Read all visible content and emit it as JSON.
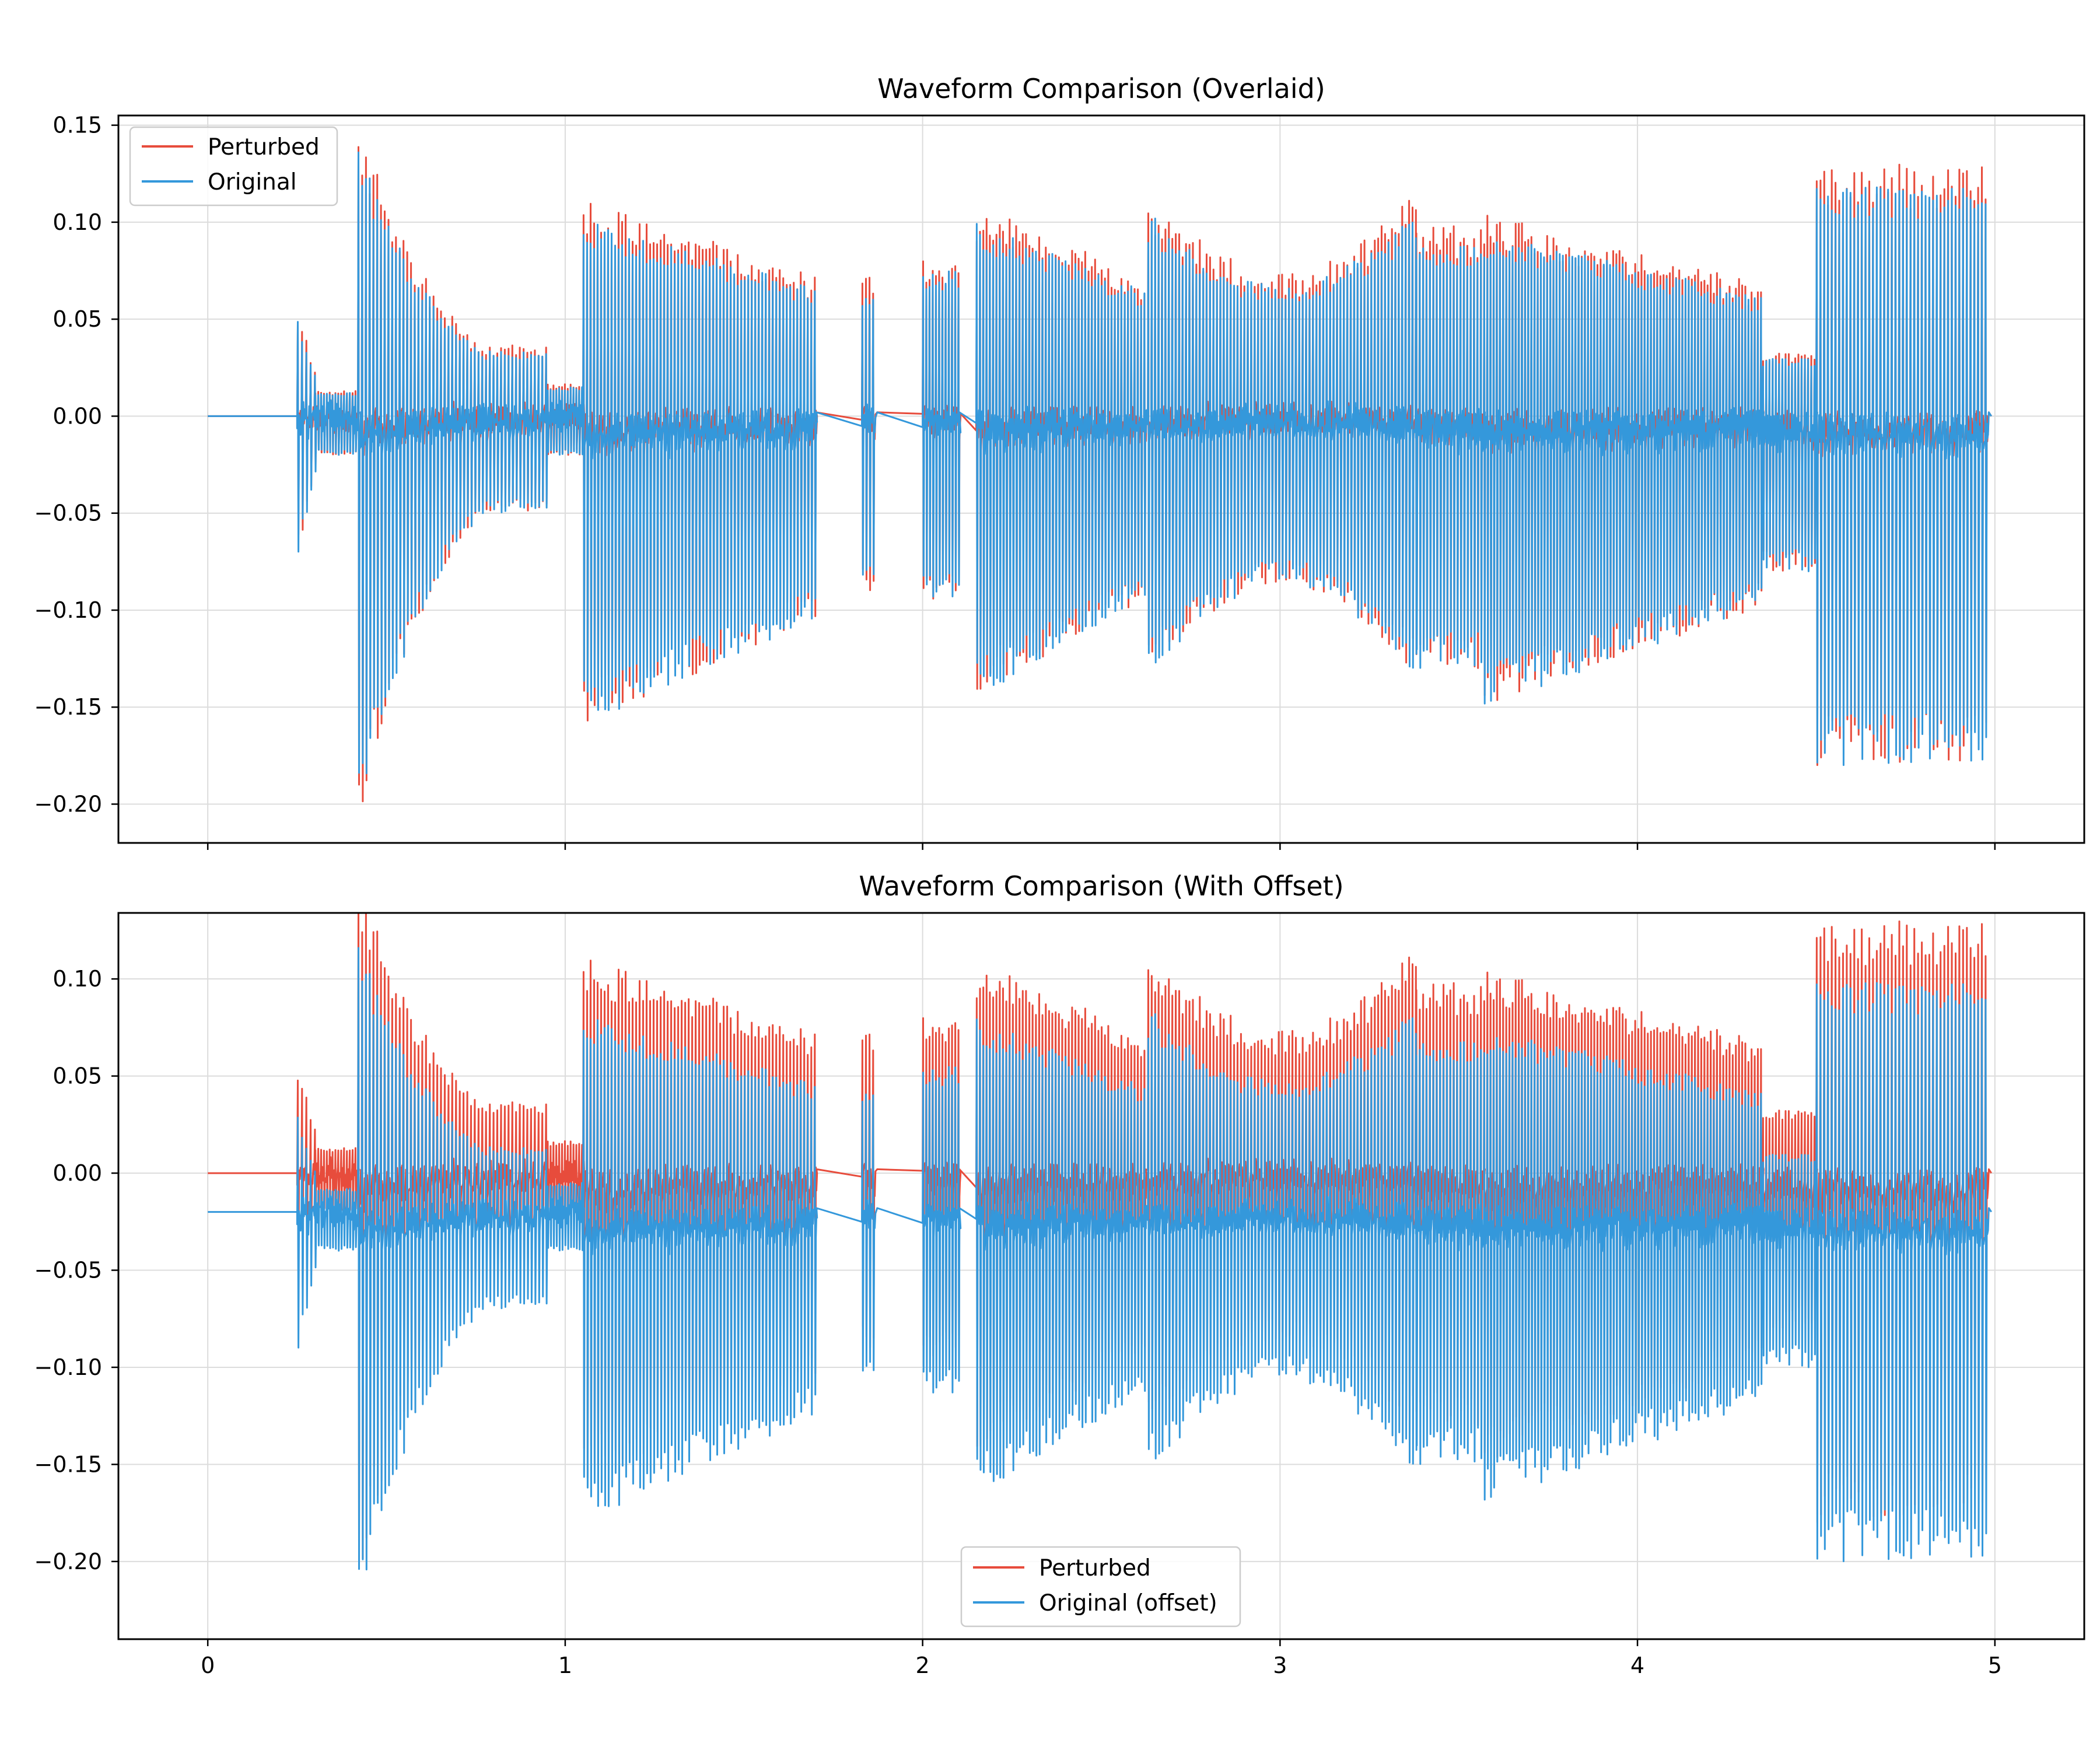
{
  "colors": {
    "perturbed": "#e74c3c",
    "original": "#3498db",
    "grid": "#dcdcdc",
    "axis": "#000000"
  },
  "chart_data": [
    {
      "type": "line",
      "title": "Waveform Comparison (Overlaid)",
      "xlabel": "",
      "ylabel": "",
      "xlim": [
        -0.25,
        5.25
      ],
      "ylim": [
        -0.22,
        0.155
      ],
      "xticks": [
        0,
        1,
        2,
        3,
        4,
        5
      ],
      "xtick_labels_visible": false,
      "yticks": [
        0.15,
        0.1,
        0.05,
        0.0,
        -0.05,
        -0.1,
        -0.15,
        -0.2
      ],
      "ytick_labels": [
        "0.15",
        "0.10",
        "0.05",
        "0.00",
        "−0.05",
        "−0.10",
        "−0.15",
        "−0.20"
      ],
      "grid": true,
      "legend_position": "top-left",
      "series": [
        {
          "name": "Perturbed",
          "offset": 0.0
        },
        {
          "name": "Original",
          "offset": 0.0
        }
      ]
    },
    {
      "type": "line",
      "title": "Waveform Comparison (With Offset)",
      "xlabel": "",
      "ylabel": "",
      "xlim": [
        -0.25,
        5.25
      ],
      "ylim": [
        -0.24,
        0.134
      ],
      "xticks": [
        0,
        1,
        2,
        3,
        4,
        5
      ],
      "xtick_labels": [
        "0",
        "1",
        "2",
        "3",
        "4",
        "5"
      ],
      "yticks": [
        0.1,
        0.05,
        0.0,
        -0.05,
        -0.1,
        -0.15,
        -0.2
      ],
      "ytick_labels": [
        "0.10",
        "0.05",
        "0.00",
        "−0.05",
        "−0.10",
        "−0.15",
        "−0.20"
      ],
      "grid": true,
      "legend_position": "bottom-center",
      "series": [
        {
          "name": "Perturbed",
          "offset": 0.0
        },
        {
          "name": "Original (offset)",
          "offset": -0.02
        }
      ]
    }
  ],
  "segments": [
    {
      "start": 0.25,
      "end": 0.3,
      "max": 0.05,
      "min": -0.07,
      "period": 0.012,
      "envelope": "spike"
    },
    {
      "start": 0.3,
      "end": 0.42,
      "max": 0.012,
      "min": -0.02,
      "period": 0.008,
      "envelope": "flat"
    },
    {
      "start": 0.42,
      "end": 0.95,
      "max": 0.135,
      "min": -0.2,
      "period": 0.0105,
      "envelope": "decay"
    },
    {
      "start": 0.95,
      "end": 1.05,
      "max": 0.015,
      "min": -0.02,
      "period": 0.008,
      "envelope": "flat"
    },
    {
      "start": 1.05,
      "end": 1.7,
      "max": 0.102,
      "min": -0.16,
      "period": 0.0098,
      "envelope": "slowdecay"
    },
    {
      "start": 1.83,
      "end": 1.87,
      "max": 0.065,
      "min": -0.09,
      "period": 0.01,
      "envelope": "flat"
    },
    {
      "start": 2.0,
      "end": 2.1,
      "max": 0.075,
      "min": -0.095,
      "period": 0.009,
      "envelope": "flat"
    },
    {
      "start": 2.15,
      "end": 2.62,
      "max": 0.1,
      "min": -0.145,
      "period": 0.0092,
      "envelope": "slowdecay"
    },
    {
      "start": 2.63,
      "end": 3.38,
      "max": 0.105,
      "min": -0.135,
      "period": 0.0096,
      "envelope": "dip"
    },
    {
      "start": 3.38,
      "end": 3.57,
      "max": 0.09,
      "min": -0.13,
      "period": 0.0095,
      "envelope": "flat"
    },
    {
      "start": 3.57,
      "end": 4.35,
      "max": 0.095,
      "min": -0.15,
      "period": 0.0088,
      "envelope": "slowdecay"
    },
    {
      "start": 4.35,
      "end": 4.5,
      "max": 0.03,
      "min": -0.08,
      "period": 0.009,
      "envelope": "flat"
    },
    {
      "start": 4.5,
      "end": 4.98,
      "max": 0.118,
      "min": -0.18,
      "period": 0.0105,
      "envelope": "flat"
    }
  ]
}
